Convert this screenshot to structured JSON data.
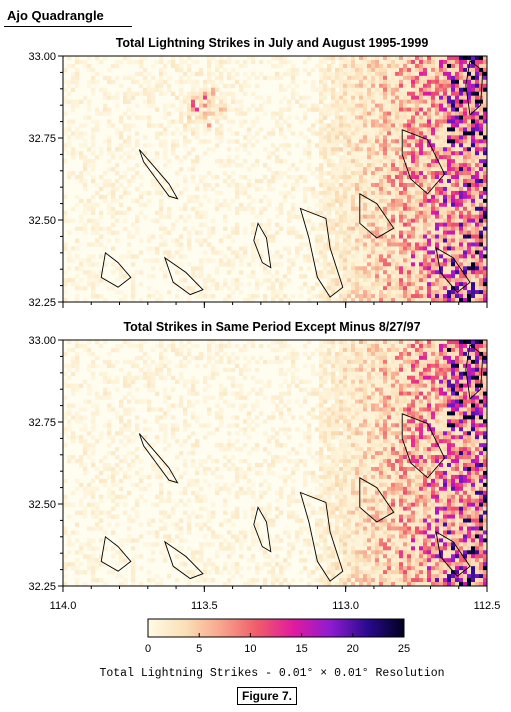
{
  "figure": {
    "header": "Ajo Quadrangle",
    "caption": "Figure 7."
  },
  "chart_data": [
    {
      "type": "heatmap",
      "title": "Total Lightning Strikes in July and August 1995-1999",
      "xlim": [
        114.0,
        112.5
      ],
      "ylim": [
        32.25,
        33.0
      ],
      "x_ticks": [
        "114.0",
        "113.5",
        "113.0",
        "112.5"
      ],
      "y_ticks": [
        "33.00",
        "32.75",
        "32.50",
        "32.25"
      ],
      "x_tick_values": [
        114.0,
        113.5,
        113.0,
        112.5
      ],
      "y_tick_values": [
        33.0,
        32.75,
        32.5,
        32.25
      ],
      "resolution_deg": 0.01,
      "intensity_description": "low counts (0-5) over most of the area; high counts (10-25) concentrated in the eastern third, peaking near 112.6-112.7 W, 32.3-32.5 N; a small hotspot near 113.45 W, 32.86 N"
    },
    {
      "type": "heatmap",
      "title": "Total Strikes in Same Period Except Minus 8/27/97",
      "xlim": [
        114.0,
        112.5
      ],
      "ylim": [
        32.25,
        33.0
      ],
      "x_ticks": [
        "114.0",
        "113.5",
        "113.0",
        "112.5"
      ],
      "y_ticks": [
        "33.00",
        "32.75",
        "32.50",
        "32.25"
      ],
      "x_tick_values": [
        114.0,
        113.5,
        113.0,
        112.5
      ],
      "y_tick_values": [
        33.0,
        32.75,
        32.5,
        32.25
      ],
      "resolution_deg": 0.01,
      "intensity_description": "same as the upper panel but without the hotspot near 113.45 W, 32.86 N"
    }
  ],
  "colorbar": {
    "min": 0,
    "max": 25,
    "ticks": [
      "0",
      "5",
      "10",
      "15",
      "20",
      "25"
    ],
    "label": "Total Lightning Strikes - 0.01° × 0.01° Resolution",
    "colors": [
      "#fffbe6",
      "#fbe0b8",
      "#f7a58c",
      "#ef5a6a",
      "#e01aa0",
      "#8e1bd0",
      "#2a0a8e",
      "#000020"
    ]
  }
}
